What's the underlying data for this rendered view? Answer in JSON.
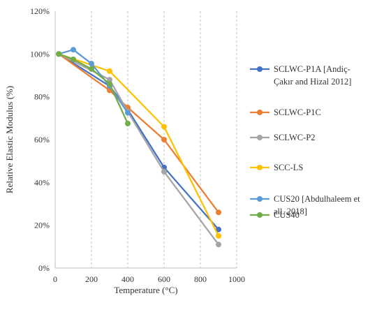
{
  "chart_data": {
    "type": "line",
    "xlabel": "Temperature (°C)",
    "ylabel": "Relative Elastic Modulus (%)",
    "xlim": [
      0,
      1000
    ],
    "ylim": [
      0,
      120
    ],
    "x_ticks": [
      "0",
      "200",
      "400",
      "600",
      "800",
      "1000"
    ],
    "y_ticks": [
      "0%",
      "20%",
      "40%",
      "60%",
      "80%",
      "100%",
      "120%"
    ],
    "grid": "vertical dashed",
    "legend_position": "right",
    "series": [
      {
        "name": "SCLWC-P1A [Andiç-Çakır and Hizal 2012]",
        "legend_lines": [
          "SCLWC-P1A [Andiç-",
          "Çakır and Hizal 2012]"
        ],
        "color": "#4472C4",
        "x": [
          20,
          300,
          400,
          600,
          900
        ],
        "y": [
          100,
          85,
          74,
          47,
          18
        ]
      },
      {
        "name": "SCLWC-P1C",
        "legend_lines": [
          "SCLWC-P1C"
        ],
        "color": "#ED7D31",
        "x": [
          20,
          300,
          400,
          600,
          900
        ],
        "y": [
          100,
          83,
          75,
          60,
          26
        ]
      },
      {
        "name": "SCLWC-P2",
        "legend_lines": [
          "SCLWC-P2"
        ],
        "color": "#A5A5A5",
        "x": [
          20,
          300,
          400,
          600,
          900
        ],
        "y": [
          100,
          88,
          73,
          45,
          11
        ]
      },
      {
        "name": "SCC-LS",
        "legend_lines": [
          "SCC-LS"
        ],
        "color": "#FFC000",
        "x": [
          20,
          300,
          600,
          900
        ],
        "y": [
          100,
          92,
          66,
          15
        ]
      },
      {
        "name": "CUS20 [Abdulhaleem et all. 2018]",
        "legend_lines": [
          "CUS20 [Abdulhaleem et",
          "all. 2018]"
        ],
        "color": "#5B9BD5",
        "x": [
          20,
          100,
          200,
          300,
          400
        ],
        "y": [
          100,
          102,
          95.5,
          85,
          72.5
        ]
      },
      {
        "name": "CUS40",
        "legend_lines": [
          "CUS40"
        ],
        "color": "#70AD47",
        "x": [
          20,
          100,
          200,
          300,
          400
        ],
        "y": [
          100,
          97.5,
          93,
          86,
          67.5
        ]
      }
    ]
  }
}
